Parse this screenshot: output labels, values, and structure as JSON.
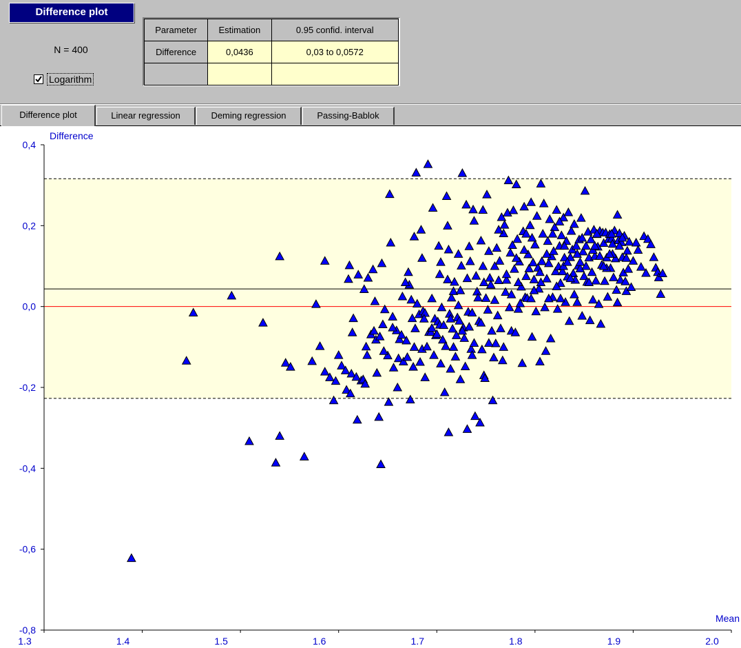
{
  "panel": {
    "title": "Difference plot",
    "n_label": "N = 400",
    "logarithm_label": "Logarithm",
    "logarithm_checked": true
  },
  "results_table": {
    "headers": [
      "Parameter",
      "Estimation",
      "0.95 confid. interval"
    ],
    "rows": [
      [
        "Difference",
        "0,0436",
        "0,03 to 0,0572"
      ],
      [
        "",
        "",
        ""
      ]
    ]
  },
  "tabs": [
    {
      "label": "Difference plot",
      "active": true
    },
    {
      "label": "Linear regression",
      "active": false
    },
    {
      "label": "Deming regression",
      "active": false
    },
    {
      "label": "Passing-Bablok",
      "active": false
    }
  ],
  "chart_data": {
    "type": "scatter",
    "ylabel": "Difference",
    "xlabel": "Mean",
    "xlim": [
      1.3,
      2.0
    ],
    "ylim": [
      -0.8,
      0.4
    ],
    "x_ticks": [
      "1.3",
      "1.4",
      "1.5",
      "1.6",
      "1.7",
      "1.8",
      "1.9",
      "2.0"
    ],
    "y_ticks": [
      "0,4",
      "0,2",
      "0,0",
      "-0,2",
      "-0,4",
      "-0,6",
      "-0,8"
    ],
    "mean_difference": 0.0436,
    "upper_limit": 0.316,
    "lower_limit": -0.227,
    "zero_line": 0,
    "colors": {
      "band": "#ffffe0",
      "zero_line": "#ff0000",
      "marker": "#0000ff",
      "axis_text": "#0000cc"
    },
    "points": [
      [
        1.389,
        -0.622
      ],
      [
        1.445,
        -0.134
      ],
      [
        1.452,
        -0.015
      ],
      [
        1.491,
        0.027
      ],
      [
        1.509,
        -0.333
      ],
      [
        1.523,
        -0.04
      ],
      [
        1.536,
        -0.386
      ],
      [
        1.54,
        -0.32
      ],
      [
        1.54,
        0.124
      ],
      [
        1.546,
        -0.139
      ],
      [
        1.551,
        -0.149
      ],
      [
        1.565,
        -0.371
      ],
      [
        1.573,
        -0.135
      ],
      [
        1.577,
        0.006
      ],
      [
        1.581,
        -0.098
      ],
      [
        1.586,
        0.113
      ],
      [
        1.586,
        -0.161
      ],
      [
        1.591,
        -0.175
      ],
      [
        1.595,
        -0.232
      ],
      [
        1.597,
        -0.184
      ],
      [
        1.603,
        -0.146
      ],
      [
        1.607,
        -0.158
      ],
      [
        1.608,
        -0.206
      ],
      [
        1.61,
        0.068
      ],
      [
        1.611,
        0.102
      ],
      [
        1.612,
        -0.215
      ],
      [
        1.613,
        -0.166
      ],
      [
        1.614,
        -0.064
      ],
      [
        1.615,
        -0.029
      ],
      [
        1.618,
        -0.174
      ],
      [
        1.619,
        -0.28
      ],
      [
        1.62,
        0.079
      ],
      [
        1.623,
        -0.183
      ],
      [
        1.625,
        -0.18
      ],
      [
        1.626,
        0.043
      ],
      [
        1.627,
        -0.191
      ],
      [
        1.628,
        -0.099
      ],
      [
        1.63,
        0.071
      ],
      [
        1.633,
        -0.069
      ],
      [
        1.635,
        0.092
      ],
      [
        1.637,
        0.013
      ],
      [
        1.638,
        -0.082
      ],
      [
        1.639,
        -0.164
      ],
      [
        1.641,
        -0.273
      ],
      [
        1.642,
        -0.074
      ],
      [
        1.643,
        -0.39
      ],
      [
        1.644,
        0.107
      ],
      [
        1.645,
        -0.044
      ],
      [
        1.647,
        -0.007
      ],
      [
        1.65,
        -0.121
      ],
      [
        1.651,
        -0.236
      ],
      [
        1.652,
        0.278
      ],
      [
        1.653,
        0.158
      ],
      [
        1.655,
        -0.025
      ],
      [
        1.656,
        -0.151
      ],
      [
        1.659,
        -0.059
      ],
      [
        1.661,
        -0.128
      ],
      [
        1.662,
        -0.081
      ],
      [
        1.665,
        0.025
      ],
      [
        1.666,
        -0.136
      ],
      [
        1.669,
        -0.084
      ],
      [
        1.67,
        -0.125
      ],
      [
        1.671,
        0.085
      ],
      [
        1.672,
        0.054
      ],
      [
        1.673,
        -0.23
      ],
      [
        1.674,
        0.017
      ],
      [
        1.675,
        -0.029
      ],
      [
        1.676,
        -0.149
      ],
      [
        1.677,
        0.173
      ],
      [
        1.678,
        -0.054
      ],
      [
        1.679,
        0.331
      ],
      [
        1.68,
        0.007
      ],
      [
        1.682,
        -0.019
      ],
      [
        1.683,
        -0.137
      ],
      [
        1.684,
        0.19
      ],
      [
        1.685,
        -0.105
      ],
      [
        1.686,
        -0.011
      ],
      [
        1.688,
        -0.016
      ],
      [
        1.69,
        -0.099
      ],
      [
        1.691,
        0.352
      ],
      [
        1.692,
        -0.063
      ],
      [
        1.694,
        -0.063
      ],
      [
        1.695,
        -0.053
      ],
      [
        1.696,
        0.244
      ],
      [
        1.697,
        -0.12
      ],
      [
        1.698,
        -0.03
      ],
      [
        1.699,
        -0.071
      ],
      [
        1.7,
        -0.068
      ],
      [
        1.701,
        -0.037
      ],
      [
        1.702,
        0.15
      ],
      [
        1.703,
        -0.045
      ],
      [
        1.704,
        -0.141
      ],
      [
        1.705,
        -0.002
      ],
      [
        1.706,
        -0.082
      ],
      [
        1.707,
        -0.046
      ],
      [
        1.708,
        -0.212
      ],
      [
        1.709,
        -0.098
      ],
      [
        1.71,
        0.273
      ],
      [
        1.711,
        0.067
      ],
      [
        1.712,
        -0.311
      ],
      [
        1.712,
        0.141
      ],
      [
        1.713,
        -0.018
      ],
      [
        1.714,
        -0.154
      ],
      [
        1.715,
        0.022
      ],
      [
        1.716,
        -0.055
      ],
      [
        1.717,
        0.038
      ],
      [
        1.718,
        0.061
      ],
      [
        1.719,
        -0.124
      ],
      [
        1.72,
        -0.071
      ],
      [
        1.721,
        -0.027
      ],
      [
        1.722,
        0.003
      ],
      [
        1.723,
        -0.035
      ],
      [
        1.724,
        0.04
      ],
      [
        1.725,
        0.101
      ],
      [
        1.726,
        0.33
      ],
      [
        1.727,
        -0.052
      ],
      [
        1.728,
        -0.078
      ],
      [
        1.729,
        -0.148
      ],
      [
        1.73,
        0.252
      ],
      [
        1.731,
        -0.303
      ],
      [
        1.732,
        -0.013
      ],
      [
        1.733,
        0.149
      ],
      [
        1.734,
        0.112
      ],
      [
        1.735,
        -0.105
      ],
      [
        1.736,
        -0.015
      ],
      [
        1.737,
        0.24
      ],
      [
        1.738,
        0.212
      ],
      [
        1.739,
        -0.271
      ],
      [
        1.74,
        0.076
      ],
      [
        1.741,
        0.037
      ],
      [
        1.742,
        0.022
      ],
      [
        1.743,
        -0.036
      ],
      [
        1.744,
        -0.287
      ],
      [
        1.745,
        0.163
      ],
      [
        1.746,
        -0.106
      ],
      [
        1.747,
        0.239
      ],
      [
        1.748,
        -0.17
      ],
      [
        1.749,
        -0.177
      ],
      [
        1.75,
        0.021
      ],
      [
        1.751,
        0.277
      ],
      [
        1.752,
        -0.008
      ],
      [
        1.753,
        0.137
      ],
      [
        1.754,
        0.071
      ],
      [
        1.755,
        0.054
      ],
      [
        1.756,
        -0.06
      ],
      [
        1.757,
        -0.232
      ],
      [
        1.758,
        -0.126
      ],
      [
        1.759,
        0.016
      ],
      [
        1.76,
        -0.091
      ],
      [
        1.761,
        0.145
      ],
      [
        1.762,
        -0.022
      ],
      [
        1.763,
        0.065
      ],
      [
        1.764,
        0.113
      ],
      [
        1.765,
        -0.054
      ],
      [
        1.766,
        0.221
      ],
      [
        1.767,
        -0.133
      ],
      [
        1.768,
        0.181
      ],
      [
        1.769,
        0.202
      ],
      [
        1.77,
        0.036
      ],
      [
        1.771,
        0.066
      ],
      [
        1.772,
        0.232
      ],
      [
        1.773,
        0.312
      ],
      [
        1.774,
        -0.002
      ],
      [
        1.775,
        0.133
      ],
      [
        1.776,
        -0.06
      ],
      [
        1.777,
        0.152
      ],
      [
        1.778,
        0.238
      ],
      [
        1.779,
        0.093
      ],
      [
        1.78,
        -0.064
      ],
      [
        1.781,
        0.302
      ],
      [
        1.782,
        0.167
      ],
      [
        1.783,
        -0.006
      ],
      [
        1.784,
        0.111
      ],
      [
        1.785,
        0.008
      ],
      [
        1.786,
        0.049
      ],
      [
        1.787,
        -0.14
      ],
      [
        1.788,
        0.186
      ],
      [
        1.789,
        0.247
      ],
      [
        1.79,
        0.023
      ],
      [
        1.791,
        0.075
      ],
      [
        1.792,
        0.021
      ],
      [
        1.793,
        0.129
      ],
      [
        1.794,
        0.094
      ],
      [
        1.795,
        0.201
      ],
      [
        1.796,
        0.258
      ],
      [
        1.797,
        -0.075
      ],
      [
        1.798,
        0.109
      ],
      [
        1.799,
        0.067
      ],
      [
        1.8,
        0.153
      ],
      [
        1.801,
        -0.012
      ],
      [
        1.802,
        0.224
      ],
      [
        1.803,
        0.096
      ],
      [
        1.804,
        0.044
      ],
      [
        1.805,
        -0.136
      ],
      [
        1.806,
        0.304
      ],
      [
        1.807,
        0.112
      ],
      [
        1.808,
        0.18
      ],
      [
        1.809,
        0.255
      ],
      [
        1.81,
        -0.002
      ],
      [
        1.811,
        -0.11
      ],
      [
        1.812,
        0.069
      ],
      [
        1.813,
        0.162
      ],
      [
        1.814,
        0.107
      ],
      [
        1.815,
        0.216
      ],
      [
        1.816,
        -0.079
      ],
      [
        1.817,
        0.124
      ],
      [
        1.818,
        0.023
      ],
      [
        1.819,
        0.137
      ],
      [
        1.82,
        0.196
      ],
      [
        1.821,
        0.087
      ],
      [
        1.822,
        0.239
      ],
      [
        1.823,
        -0.006
      ],
      [
        1.824,
        0.099
      ],
      [
        1.825,
        0.15
      ],
      [
        1.826,
        0.058
      ],
      [
        1.827,
        0.176
      ],
      [
        1.828,
        0.087
      ],
      [
        1.829,
        0.22
      ],
      [
        1.83,
        0.121
      ],
      [
        1.831,
        0.011
      ],
      [
        1.832,
        0.162
      ],
      [
        1.833,
        0.074
      ],
      [
        1.834,
        0.233
      ],
      [
        1.835,
        -0.036
      ],
      [
        1.836,
        0.122
      ],
      [
        1.837,
        0.187
      ],
      [
        1.838,
        0.141
      ],
      [
        1.839,
        0.082
      ],
      [
        1.84,
        0.204
      ],
      [
        1.841,
        0.066
      ],
      [
        1.842,
        0.15
      ],
      [
        1.843,
        0.011
      ],
      [
        1.844,
        0.101
      ],
      [
        1.845,
        0.166
      ],
      [
        1.846,
        0.094
      ],
      [
        1.847,
        0.219
      ],
      [
        1.848,
        -0.023
      ],
      [
        1.849,
        0.136
      ],
      [
        1.85,
        0.075
      ],
      [
        1.851,
        0.286
      ],
      [
        1.852,
        0.15
      ],
      [
        1.853,
        0.061
      ],
      [
        1.854,
        0.185
      ],
      [
        1.855,
        0.121
      ],
      [
        1.856,
        -0.034
      ],
      [
        1.857,
        0.166
      ],
      [
        1.858,
        0.085
      ],
      [
        1.859,
        0.017
      ],
      [
        1.86,
        0.19
      ],
      [
        1.861,
        0.125
      ],
      [
        1.862,
        0.064
      ],
      [
        1.863,
        0.179
      ],
      [
        1.864,
        0.148
      ],
      [
        1.865,
        0.006
      ],
      [
        1.866,
        0.187
      ],
      [
        1.867,
        -0.043
      ],
      [
        1.868,
        0.103
      ],
      [
        1.869,
        0.183
      ],
      [
        1.87,
        0.157
      ],
      [
        1.871,
        0.063
      ],
      [
        1.872,
        0.183
      ],
      [
        1.873,
        0.121
      ],
      [
        1.874,
        0.024
      ],
      [
        1.875,
        0.167
      ],
      [
        1.876,
        0.179
      ],
      [
        1.877,
        0.095
      ],
      [
        1.878,
        0.168
      ],
      [
        1.879,
        0.155
      ],
      [
        1.88,
        0.072
      ],
      [
        1.881,
        0.188
      ],
      [
        1.882,
        0.119
      ],
      [
        1.883,
        0.041
      ],
      [
        1.884,
        0.227
      ],
      [
        1.885,
        0.164
      ],
      [
        1.886,
        0.181
      ],
      [
        1.887,
        0.066
      ],
      [
        1.888,
        0.159
      ],
      [
        1.889,
        0.122
      ],
      [
        1.89,
        0.084
      ],
      [
        1.891,
        0.175
      ],
      [
        1.892,
        0.062
      ],
      [
        1.893,
        0.038
      ],
      [
        1.894,
        0.138
      ],
      [
        1.895,
        0.093
      ],
      [
        1.896,
        0.16
      ],
      [
        1.898,
        0.048
      ],
      [
        1.9,
        0.113
      ],
      [
        1.903,
        0.158
      ],
      [
        1.905,
        0.14
      ],
      [
        1.908,
        0.098
      ],
      [
        1.911,
        0.174
      ],
      [
        1.913,
        0.083
      ],
      [
        1.915,
        0.167
      ],
      [
        1.918,
        0.154
      ],
      [
        1.921,
        0.122
      ],
      [
        1.923,
        0.096
      ],
      [
        1.925,
        0.085
      ],
      [
        1.926,
        0.072
      ],
      [
        1.928,
        0.031
      ],
      [
        1.93,
        0.082
      ],
      [
        1.655,
        -0.052
      ],
      [
        1.668,
        0.06
      ],
      [
        1.685,
        0.12
      ],
      [
        1.703,
        0.08
      ],
      [
        1.717,
        -0.1
      ],
      [
        1.733,
        -0.05
      ],
      [
        1.747,
        0.1
      ],
      [
        1.763,
        0.19
      ],
      [
        1.776,
        0.03
      ],
      [
        1.789,
        0.14
      ],
      [
        1.797,
        0.17
      ],
      [
        1.805,
        0.085
      ],
      [
        1.812,
        0.13
      ],
      [
        1.822,
        0.05
      ],
      [
        1.829,
        0.1
      ],
      [
        1.836,
        0.07
      ],
      [
        1.843,
        0.13
      ],
      [
        1.852,
        0.1
      ],
      [
        1.859,
        0.14
      ],
      [
        1.866,
        0.125
      ],
      [
        1.873,
        0.095
      ],
      [
        1.879,
        0.13
      ],
      [
        1.886,
        0.15
      ],
      [
        1.893,
        0.12
      ],
      [
        1.6,
        -0.12
      ],
      [
        1.629,
        -0.12
      ],
      [
        1.66,
        -0.2
      ],
      [
        1.688,
        -0.175
      ],
      [
        1.714,
        -0.03
      ],
      [
        1.724,
        -0.18
      ],
      [
        1.753,
        -0.09
      ],
      [
        1.768,
        -0.1
      ],
      [
        1.783,
        0.06
      ],
      [
        1.799,
        0.04
      ],
      [
        1.814,
        0.02
      ],
      [
        1.826,
        0.02
      ],
      [
        1.84,
        0.03
      ],
      [
        1.855,
        0.06
      ],
      [
        1.87,
        0.1
      ],
      [
        1.884,
        0.01
      ],
      [
        1.796,
        0.02
      ],
      [
        1.806,
        0.06
      ],
      [
        1.818,
        0.18
      ],
      [
        1.83,
        0.15
      ],
      [
        1.846,
        0.11
      ],
      [
        1.861,
        0.15
      ],
      [
        1.876,
        0.13
      ],
      [
        1.889,
        0.17
      ],
      [
        1.738,
        -0.09
      ],
      [
        1.745,
        -0.04
      ],
      [
        1.731,
        0.07
      ],
      [
        1.722,
        0.13
      ],
      [
        1.711,
        0.2
      ],
      [
        1.704,
        0.11
      ],
      [
        1.695,
        0.02
      ],
      [
        1.687,
        -0.03
      ],
      [
        1.677,
        -0.1
      ],
      [
        1.664,
        -0.07
      ],
      [
        1.646,
        -0.11
      ],
      [
        1.636,
        -0.06
      ],
      [
        1.825,
        0.21
      ],
      [
        1.833,
        0.11
      ],
      [
        1.848,
        0.17
      ],
      [
        1.863,
        0.18
      ],
      [
        1.878,
        0.18
      ],
      [
        1.791,
        0.18
      ],
      [
        1.781,
        0.12
      ],
      [
        1.771,
        0.08
      ],
      [
        1.759,
        0.1
      ],
      [
        1.748,
        0.06
      ],
      [
        1.736,
        -0.12
      ],
      [
        1.726,
        -0.06
      ]
    ]
  }
}
